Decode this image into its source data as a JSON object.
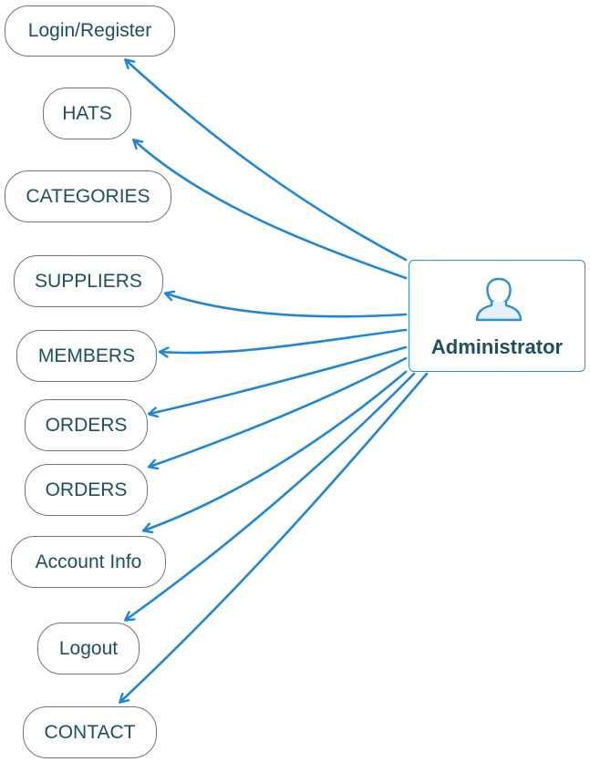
{
  "actor": {
    "label": "Administrator",
    "icon": "user-icon",
    "border_color": "#2b8fd8"
  },
  "arrow_color": "#1f86d6",
  "nodes": [
    {
      "id": "login-register",
      "label": "Login/Register"
    },
    {
      "id": "hats",
      "label": "HATS"
    },
    {
      "id": "categories",
      "label": "CATEGORIES"
    },
    {
      "id": "suppliers",
      "label": "SUPPLIERS"
    },
    {
      "id": "members",
      "label": "MEMBERS"
    },
    {
      "id": "orders-1",
      "label": "ORDERS"
    },
    {
      "id": "orders-2",
      "label": "ORDERS"
    },
    {
      "id": "account-info",
      "label": "Account Info"
    },
    {
      "id": "logout",
      "label": "Logout"
    },
    {
      "id": "contact",
      "label": "CONTACT"
    }
  ],
  "edges": [
    {
      "from": "Administrator",
      "to": "login-register"
    },
    {
      "from": "Administrator",
      "to": "hats"
    },
    {
      "from": "Administrator",
      "to": "suppliers"
    },
    {
      "from": "Administrator",
      "to": "members"
    },
    {
      "from": "Administrator",
      "to": "orders-1"
    },
    {
      "from": "Administrator",
      "to": "orders-2"
    },
    {
      "from": "Administrator",
      "to": "account-info"
    },
    {
      "from": "Administrator",
      "to": "logout"
    },
    {
      "from": "Administrator",
      "to": "contact"
    }
  ],
  "text_color": "#1d4f5c",
  "node_border_color": "#6d7478"
}
